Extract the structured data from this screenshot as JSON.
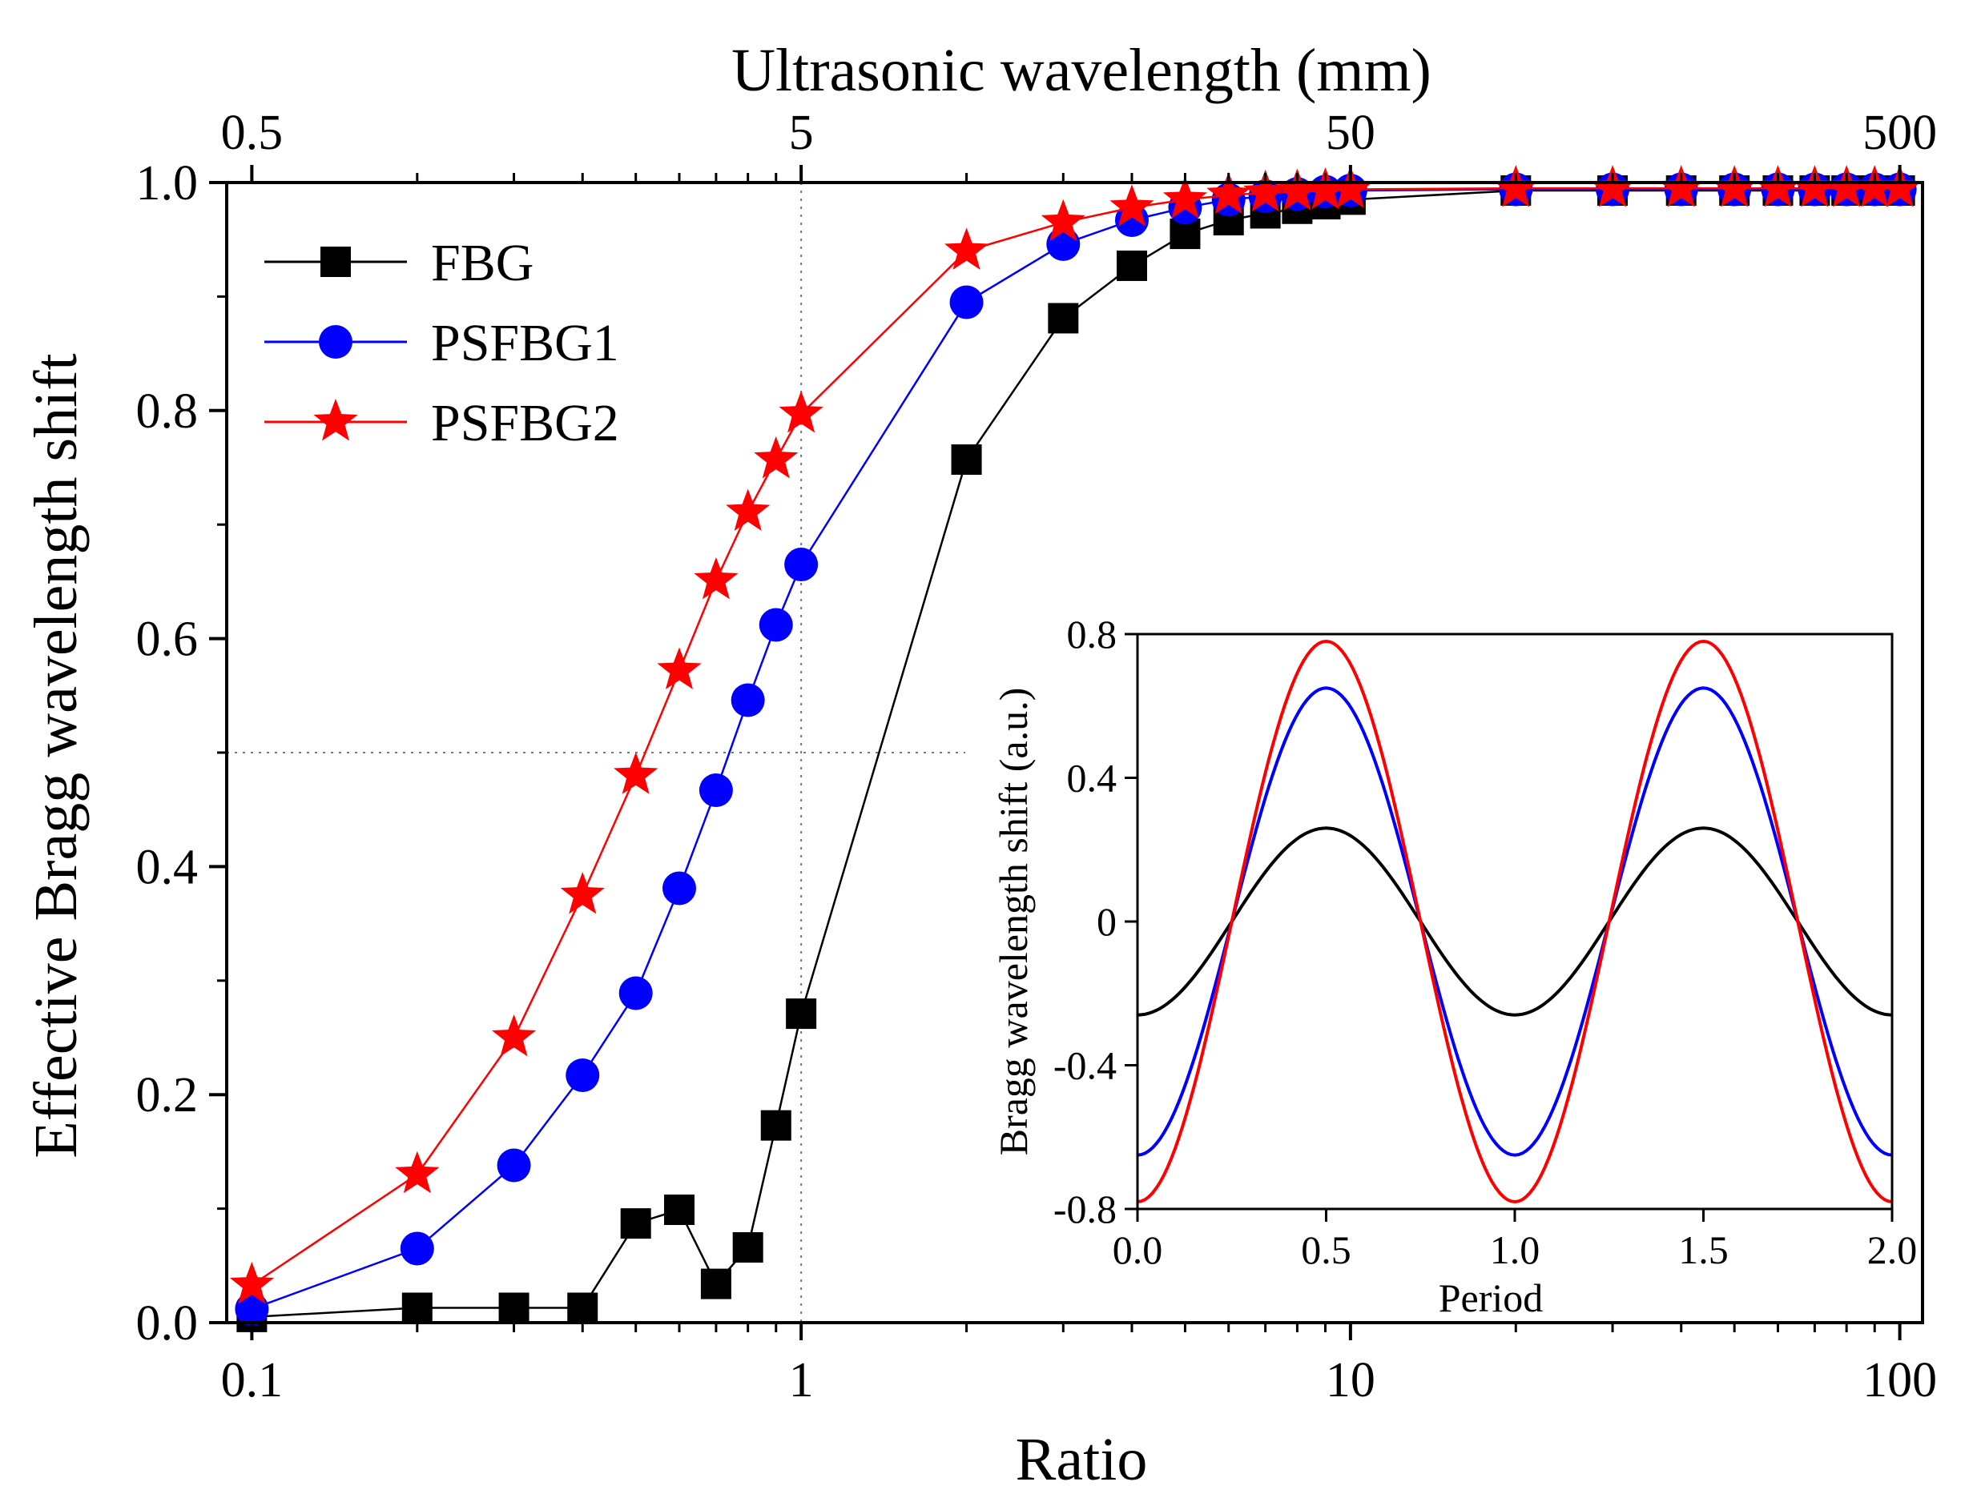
{
  "chart_data": [
    {
      "type": "line",
      "title": "",
      "xlabel": "Ratio",
      "ylabel": "Effective Bragg wavelength shift",
      "x_scale": "log",
      "xlim": [
        0.09,
        110
      ],
      "ylim": [
        0.0,
        1.0
      ],
      "x_ticks": [
        0.1,
        1,
        10,
        100
      ],
      "x_tick_labels": [
        "0.1",
        "1",
        "10",
        "100"
      ],
      "y_ticks": [
        0.0,
        0.2,
        0.4,
        0.6,
        0.8,
        1.0
      ],
      "y_tick_labels": [
        "0.0",
        "0.2",
        "0.4",
        "0.6",
        "0.8",
        "1.0"
      ],
      "top_axis": {
        "label": "Ultrasonic wavelength (mm)",
        "ticks": [
          0.1,
          1,
          10,
          100
        ],
        "tick_labels": [
          "0.5",
          "5",
          "50",
          "500"
        ]
      },
      "reference_lines": [
        {
          "orientation": "vertical",
          "x": 1,
          "style": "dotted"
        },
        {
          "orientation": "horizontal",
          "y": 0.5,
          "style": "dotted"
        }
      ],
      "legend": {
        "position": "top-left"
      },
      "x": [
        0.1,
        0.2,
        0.3,
        0.4,
        0.5,
        0.6,
        0.7,
        0.8,
        0.9,
        1,
        2,
        3,
        4,
        5,
        6,
        7,
        8,
        9,
        10,
        20,
        30,
        40,
        50,
        60,
        70,
        80,
        90,
        100
      ],
      "series": [
        {
          "name": "FBG",
          "color": "#000000",
          "marker": "square",
          "values": [
            0.005,
            0.013,
            0.013,
            0.013,
            0.087,
            0.099,
            0.034,
            0.066,
            0.173,
            0.271,
            0.757,
            0.881,
            0.927,
            0.955,
            0.967,
            0.973,
            0.977,
            0.981,
            0.985,
            0.993,
            0.993,
            0.993,
            0.993,
            0.993,
            0.993,
            0.993,
            0.993,
            0.993
          ]
        },
        {
          "name": "PSFBG1",
          "color": "#0000ff",
          "marker": "circle",
          "values": [
            0.012,
            0.065,
            0.138,
            0.217,
            0.289,
            0.381,
            0.467,
            0.546,
            0.612,
            0.665,
            0.895,
            0.946,
            0.967,
            0.978,
            0.985,
            0.988,
            0.99,
            0.992,
            0.993,
            0.994,
            0.994,
            0.994,
            0.994,
            0.994,
            0.994,
            0.994,
            0.994,
            0.994
          ]
        },
        {
          "name": "PSFBG2",
          "color": "#ff0000",
          "marker": "star",
          "values": [
            0.033,
            0.13,
            0.25,
            0.375,
            0.48,
            0.572,
            0.651,
            0.711,
            0.757,
            0.797,
            0.94,
            0.965,
            0.978,
            0.985,
            0.989,
            0.991,
            0.992,
            0.993,
            0.994,
            0.995,
            0.995,
            0.995,
            0.995,
            0.995,
            0.995,
            0.995,
            0.995,
            0.995
          ]
        }
      ]
    },
    {
      "type": "line",
      "title": "",
      "xlabel": "Period",
      "ylabel": "Bragg wavelength shift (a.u.)",
      "xlim": [
        0.0,
        2.0
      ],
      "ylim": [
        -0.8,
        0.8
      ],
      "x_ticks": [
        0.0,
        0.5,
        1.0,
        1.5,
        2.0
      ],
      "x_tick_labels": [
        "0.0",
        "0.5",
        "1.0",
        "1.5",
        "2.0"
      ],
      "y_ticks": [
        -0.8,
        -0.4,
        0,
        0.4,
        0.8
      ],
      "y_tick_labels": [
        "-0.8",
        "-0.4",
        "0",
        "0.4",
        "0.8"
      ],
      "series": [
        {
          "name": "FBG",
          "color": "#000000",
          "amplitude": 0.26,
          "function": "-A*cos(2*pi*x)"
        },
        {
          "name": "PSFBG1",
          "color": "#0000ff",
          "amplitude": 0.65,
          "function": "-A*cos(2*pi*x)"
        },
        {
          "name": "PSFBG2",
          "color": "#ff0000",
          "amplitude": 0.78,
          "function": "-A*cos(2*pi*x)"
        }
      ]
    }
  ]
}
